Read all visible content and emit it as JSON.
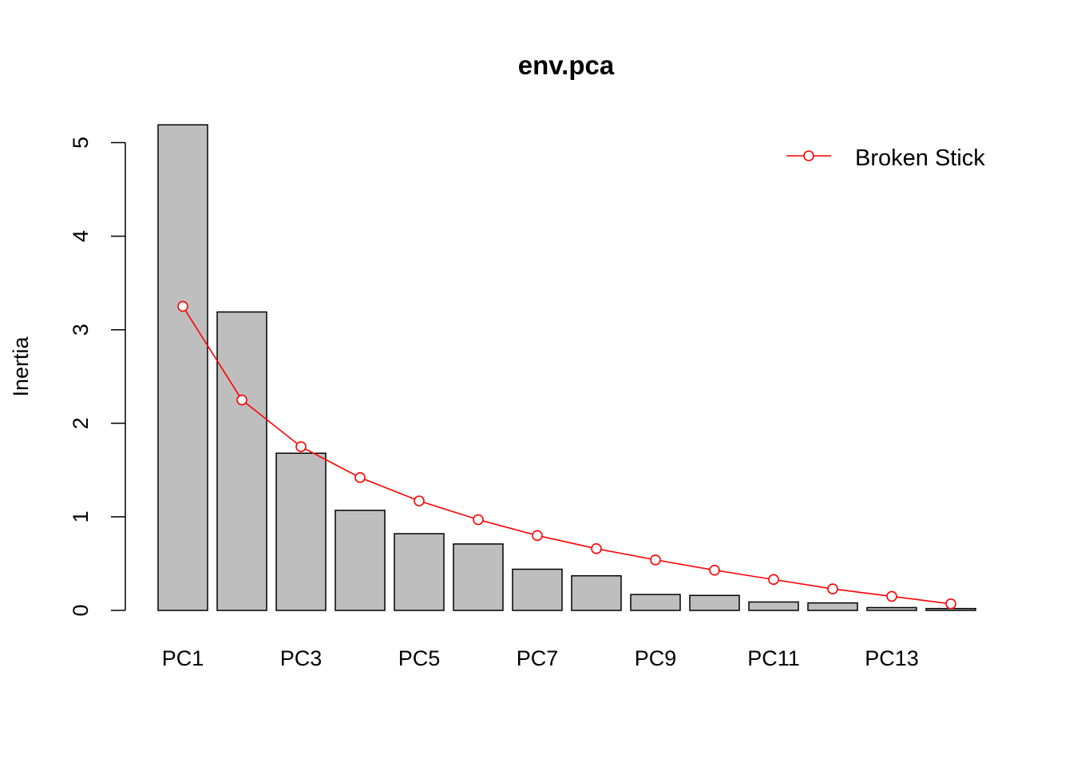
{
  "chart_data": {
    "type": "bar",
    "title": "env.pca",
    "xlabel": "",
    "ylabel": "Inertia",
    "categories": [
      "PC1",
      "PC2",
      "PC3",
      "PC4",
      "PC5",
      "PC6",
      "PC7",
      "PC8",
      "PC9",
      "PC10",
      "PC11",
      "PC12",
      "PC13",
      "PC14"
    ],
    "x_tick_labels_shown": [
      "PC1",
      "PC3",
      "PC5",
      "PC7",
      "PC9",
      "PC11",
      "PC13"
    ],
    "y_ticks": [
      0,
      1,
      2,
      3,
      4,
      5
    ],
    "ylim": [
      0,
      5.2
    ],
    "grid": false,
    "series": [
      {
        "kind": "bar",
        "values": [
          5.19,
          3.19,
          1.68,
          1.07,
          0.82,
          0.71,
          0.44,
          0.37,
          0.17,
          0.16,
          0.09,
          0.08,
          0.03,
          0.02
        ]
      },
      {
        "kind": "line",
        "name": "Broken Stick",
        "values": [
          3.25,
          2.25,
          1.75,
          1.42,
          1.17,
          0.97,
          0.8,
          0.66,
          0.54,
          0.43,
          0.33,
          0.23,
          0.15,
          0.07
        ]
      }
    ],
    "legend": {
      "position": "top-right",
      "entries": [
        "Broken Stick"
      ]
    },
    "colors": {
      "bar_fill": "#bebebe",
      "bar_stroke": "#000000",
      "line": "#ff0000"
    }
  }
}
